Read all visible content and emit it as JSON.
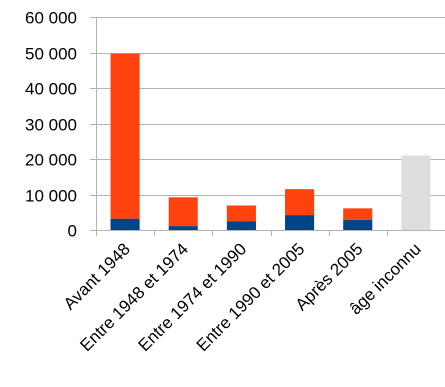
{
  "chart_data": {
    "type": "bar",
    "stacked": true,
    "categories": [
      "Avant 1948",
      "Entre 1948 et 1974",
      "Entre 1974 et 1990",
      "Entre 1990 et 2005",
      "Après 2005",
      "âge inconnu"
    ],
    "series": [
      {
        "values": [
          3200,
          1100,
          2400,
          4200,
          2900,
          0
        ],
        "color": "#004586"
      },
      {
        "values": [
          46500,
          8100,
          4500,
          7300,
          3200,
          0
        ],
        "color": "#ff420e"
      },
      {
        "values": [
          0,
          0,
          0,
          0,
          0,
          21000
        ],
        "color": "#dddddd"
      }
    ],
    "y_ticks": [
      "0",
      "10 000",
      "20 000",
      "30 000",
      "40 000",
      "50 000",
      "60 000"
    ],
    "ylim": [
      0,
      60000
    ],
    "grid": true,
    "legend": "none",
    "title": "",
    "xlabel": "",
    "ylabel": ""
  }
}
